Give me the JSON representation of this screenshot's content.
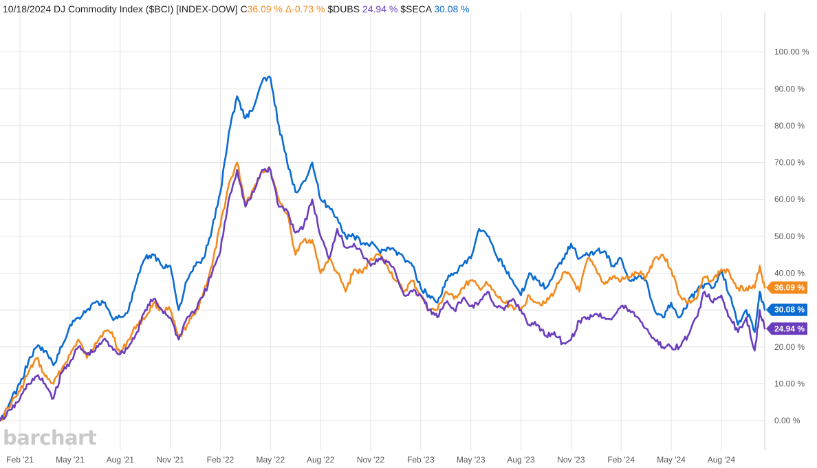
{
  "header": {
    "date": "10/18/2024",
    "name": "DJ Commodity Index ($BCI) [INDEX-DOW]",
    "close_prefix": "C",
    "close_value": "36.09 %",
    "change_prefix": "Δ",
    "change_value": "-0.73 %",
    "dubs_label": "$DUBS",
    "dubs_value": "24.94 %",
    "seca_label": "$SECA",
    "seca_value": "30.08 %"
  },
  "brand": {
    "logo_text": "barchart"
  },
  "colors": {
    "bci": "#f28a1e",
    "dubs": "#6a3dbd",
    "seca": "#0a6bd0",
    "grid": "#e3e3e3",
    "axis_text": "#555555",
    "header_text": "#222222"
  },
  "chart_data": {
    "type": "line",
    "title": "10/18/2024 DJ Commodity Index ($BCI) [INDEX-DOW]",
    "ylim": [
      -8,
      110
    ],
    "y_ticks": [
      0,
      10,
      20,
      30,
      40,
      50,
      60,
      70,
      80,
      90,
      100
    ],
    "y_tick_labels": [
      "0.00 %",
      "10.00 %",
      "20.00 %",
      "30.00 %",
      "40.00 %",
      "50.00 %",
      "60.00 %",
      "70.00 %",
      "80.00 %",
      "90.00 %",
      "100.00 %"
    ],
    "x_tick_labels": [
      "Feb '21",
      "May '21",
      "Aug '21",
      "Nov '21",
      "Feb '22",
      "May '22",
      "Aug '22",
      "Nov '22",
      "Feb '23",
      "May '23",
      "Aug '23",
      "Nov '23",
      "Feb '24",
      "May '24",
      "Aug '24"
    ],
    "x_range_months": [
      -1.2,
      44.6
    ],
    "x": [
      -1.2,
      -0.5,
      0,
      0.5,
      1,
      1.5,
      2,
      2.5,
      3,
      3.5,
      4,
      4.5,
      5,
      5.5,
      6,
      6.5,
      7,
      7.5,
      8,
      8.5,
      9,
      9.5,
      10,
      10.5,
      11,
      11.5,
      12,
      12.5,
      13,
      13.5,
      14,
      14.5,
      15,
      15.5,
      16,
      16.5,
      17,
      17.5,
      18,
      18.5,
      19,
      19.5,
      20,
      20.5,
      21,
      21.5,
      22,
      22.5,
      23,
      23.5,
      24,
      24.5,
      25,
      25.5,
      26,
      26.5,
      27,
      27.5,
      28,
      28.5,
      29,
      29.5,
      30,
      30.5,
      31,
      31.5,
      32,
      32.5,
      33,
      33.5,
      34,
      34.5,
      35,
      35.5,
      36,
      36.5,
      37,
      37.5,
      38,
      38.5,
      39,
      39.5,
      40,
      40.5,
      41,
      41.5,
      42,
      42.5,
      43,
      43.5,
      44,
      44.3,
      44.6
    ],
    "series": [
      {
        "name": "DJ Commodity Index ($BCI)",
        "end_label": "36.09 %",
        "values": [
          0,
          5,
          8,
          13,
          17,
          12,
          10,
          14,
          18,
          22,
          17,
          21,
          24,
          24,
          18,
          22,
          26,
          28,
          32,
          30,
          30,
          22,
          26,
          29,
          35,
          42,
          53,
          64,
          70,
          59,
          63,
          68,
          68,
          60,
          56,
          45,
          49,
          49,
          40,
          44,
          40,
          35,
          41,
          40,
          44,
          45,
          42,
          38,
          35,
          38,
          34,
          30,
          30,
          35,
          33,
          36,
          38,
          36,
          37,
          34,
          32,
          31,
          30,
          34,
          32,
          32,
          35,
          40,
          39,
          35,
          44,
          41,
          37,
          39,
          38,
          39,
          40,
          39,
          44,
          45,
          41,
          34,
          32,
          33,
          39,
          38,
          41,
          40,
          36,
          36,
          36,
          42,
          36.09
        ]
      },
      {
        "name": "$DUBS",
        "end_label": "24.94 %",
        "values": [
          0,
          3,
          6,
          10,
          12,
          10,
          6,
          13,
          16,
          20,
          18,
          19,
          22,
          20,
          18,
          20,
          24,
          30,
          33,
          30,
          28,
          22,
          28,
          30,
          34,
          40,
          46,
          60,
          68,
          58,
          62,
          68,
          68,
          58,
          57,
          51,
          53,
          60,
          50,
          44,
          52,
          47,
          48,
          45,
          42,
          44,
          43,
          40,
          34,
          35,
          34,
          30,
          28,
          32,
          30,
          33,
          31,
          32,
          35,
          31,
          30,
          33,
          30,
          26,
          26,
          23,
          24,
          21,
          22,
          27,
          28,
          29,
          28,
          28,
          31,
          30,
          28,
          25,
          22,
          20,
          20,
          20,
          23,
          28,
          35,
          32,
          34,
          28,
          24,
          28,
          19,
          30,
          24.94
        ]
      },
      {
        "name": "$SECA",
        "end_label": "30.08 %",
        "values": [
          0,
          6,
          10,
          16,
          20,
          19,
          15,
          20,
          26,
          28,
          30,
          32,
          32,
          28,
          28,
          30,
          38,
          44,
          45,
          42,
          42,
          30,
          38,
          42,
          44,
          52,
          62,
          78,
          88,
          82,
          85,
          92,
          93,
          80,
          70,
          62,
          65,
          70,
          60,
          58,
          55,
          50,
          50,
          48,
          48,
          46,
          47,
          46,
          44,
          42,
          36,
          34,
          32,
          38,
          40,
          42,
          44,
          52,
          50,
          45,
          42,
          38,
          34,
          40,
          38,
          36,
          40,
          44,
          48,
          44,
          45,
          46,
          46,
          42,
          44,
          38,
          39,
          38,
          30,
          28,
          32,
          28,
          32,
          35,
          37,
          36,
          41,
          34,
          26,
          30,
          24,
          35,
          30.08
        ]
      }
    ]
  }
}
